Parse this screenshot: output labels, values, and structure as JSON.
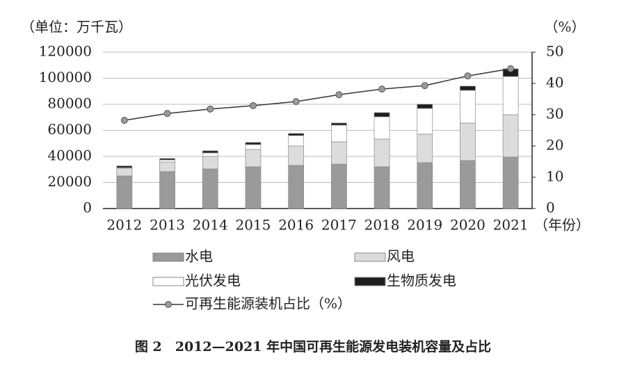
{
  "chart_data": {
    "type": "bar",
    "stacked": true,
    "title": "图 2　2012—2021 年中国可再生能源发电装机容量及占比",
    "y_label": "（单位：万千瓦）",
    "y2_label": "（%）",
    "x_label": "（年份）",
    "categories": [
      "2012",
      "2013",
      "2014",
      "2015",
      "2016",
      "2017",
      "2018",
      "2019",
      "2020",
      "2021"
    ],
    "series": [
      {
        "name": "水电",
        "color": "#9a9a9a",
        "values": [
          25000,
          28300,
          30400,
          32000,
          33100,
          34100,
          32000,
          35200,
          36800,
          39500
        ]
      },
      {
        "name": "风电",
        "color": "#dcdcdc",
        "values": [
          6000,
          7400,
          9600,
          13300,
          14900,
          17100,
          21300,
          21900,
          28800,
          32500
        ]
      },
      {
        "name": "光伏发电",
        "color": "#ffffff",
        "values": [
          400,
          1600,
          2700,
          3800,
          8000,
          12800,
          17100,
          19700,
          25100,
          29300
        ]
      },
      {
        "name": "生物质发电",
        "color": "#1e1e1e",
        "values": [
          1300,
          1100,
          1600,
          1600,
          1600,
          1600,
          3200,
          3200,
          3200,
          5900
        ]
      },
      {
        "name": "可再生能源装机占比（%）",
        "type": "line",
        "axis": "y2",
        "color": "#333333",
        "marker_color": "#9a9a9a",
        "values": [
          28.2,
          30.4,
          31.8,
          32.9,
          34.2,
          36.4,
          38.2,
          39.3,
          42.4,
          44.7
        ]
      }
    ],
    "ylim": [
      0,
      120000
    ],
    "yticks": [
      0,
      20000,
      40000,
      60000,
      80000,
      100000,
      120000
    ],
    "y2lim": [
      0,
      50
    ],
    "y2ticks": [
      0,
      10,
      20,
      30,
      40,
      50
    ],
    "grid": true
  }
}
